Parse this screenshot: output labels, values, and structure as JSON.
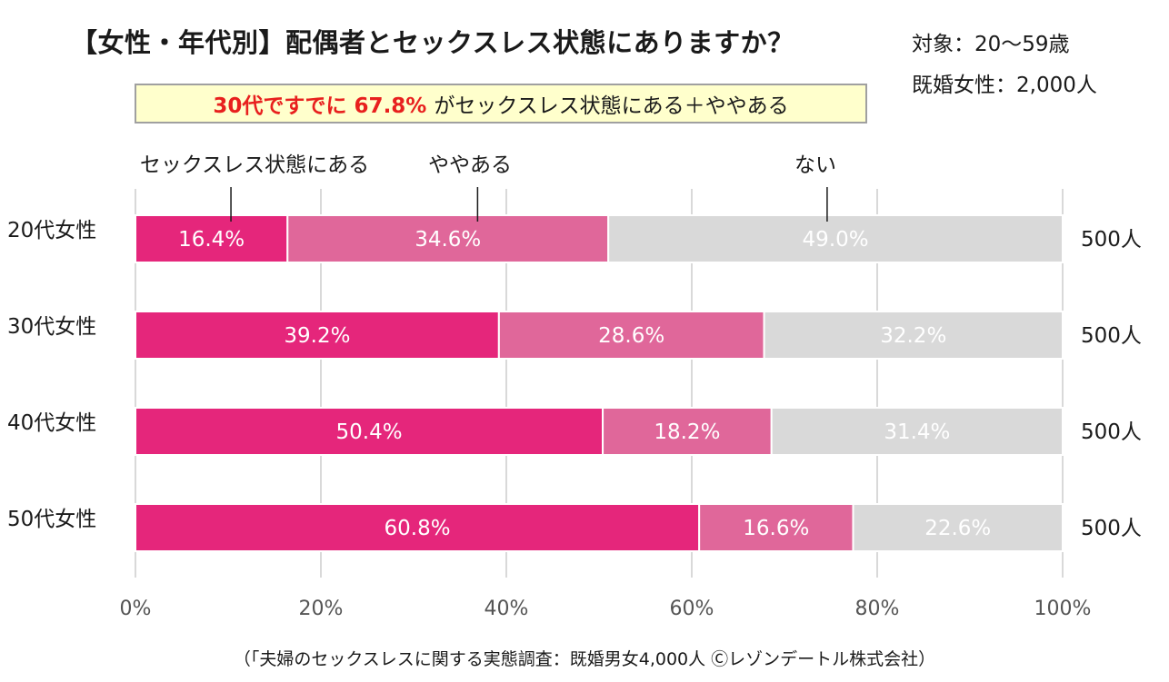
{
  "header": {
    "title": "【女性・年代別】配偶者とセックスレス状態にありますか？",
    "meta_target": "対象：20〜59歳",
    "meta_sample": "既婚女性：2,000人"
  },
  "callout": {
    "highlight": "30代ですでに 67.8%",
    "text": "がセックスレス状態にある＋ややある"
  },
  "colors": {
    "series_1": "#e5267b",
    "series_2": "#e0679a",
    "series_3": "#d9d9d9",
    "grid": "#d9d9d9",
    "callout_highlight": "#e8201e"
  },
  "chart_data": {
    "type": "bar",
    "orientation": "horizontal",
    "stacked": true,
    "categories": [
      "20代女性",
      "30代女性",
      "40代女性",
      "50代女性"
    ],
    "series": [
      {
        "name": "セックスレス状態にある",
        "values": [
          16.4,
          39.2,
          50.4,
          60.8
        ]
      },
      {
        "name": "ややある",
        "values": [
          34.6,
          28.6,
          18.2,
          16.6
        ]
      },
      {
        "name": "ない",
        "values": [
          49.0,
          32.2,
          31.4,
          22.6
        ]
      }
    ],
    "sample_sizes": [
      "500人",
      "500人",
      "500人",
      "500人"
    ],
    "xlim": [
      0,
      100
    ],
    "xticks": [
      "0%",
      "20%",
      "40%",
      "60%",
      "80%",
      "100%"
    ],
    "grid": true,
    "legend": "top, labels with leader lines"
  },
  "footer": {
    "source": "（「夫婦のセックスレスに関する実態調査：既婚男女4,000人 Ⓒレゾンデートル株式会社）"
  }
}
